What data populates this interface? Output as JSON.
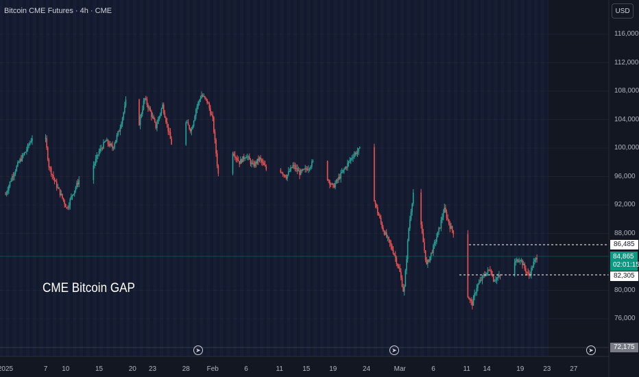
{
  "header": {
    "title": "Bitcoin CME Futures · 4h · CME",
    "currency_label": "USD"
  },
  "annotation": "CME Bitcoin GAP",
  "colors": {
    "background": "#131722",
    "up": "#26a69a",
    "down": "#ef5350",
    "highlight": "#1b2444",
    "price_line": "#089981"
  },
  "y_axis": [
    {
      "label": "116,000",
      "value": 116000
    },
    {
      "label": "112,000",
      "value": 112000
    },
    {
      "label": "108,000",
      "value": 108000
    },
    {
      "label": "104,000",
      "value": 104000
    },
    {
      "label": "100,000",
      "value": 100000
    },
    {
      "label": "96,000",
      "value": 96000
    },
    {
      "label": "92,000",
      "value": 92000
    },
    {
      "label": "88,000",
      "value": 88000
    },
    {
      "label": "80,000",
      "value": 80000
    },
    {
      "label": "76,000",
      "value": 76000
    }
  ],
  "price_tags": {
    "gap_top": {
      "label": "86,485",
      "value": 86485
    },
    "current": {
      "label": "84,865",
      "countdown": "02:01:15",
      "value": 84865
    },
    "gap_bottom": {
      "label": "82,305",
      "value": 82305
    },
    "low": {
      "label": "72,175",
      "value": 72175
    }
  },
  "x_axis": [
    {
      "label": "2025",
      "day": 0
    },
    {
      "label": "7",
      "day": 6
    },
    {
      "label": "10",
      "day": 9
    },
    {
      "label": "15",
      "day": 14
    },
    {
      "label": "20",
      "day": 19
    },
    {
      "label": "23",
      "day": 22
    },
    {
      "label": "28",
      "day": 27
    },
    {
      "label": "Feb",
      "day": 31
    },
    {
      "label": "6",
      "day": 36
    },
    {
      "label": "11",
      "day": 41
    },
    {
      "label": "15",
      "day": 45
    },
    {
      "label": "19",
      "day": 49
    },
    {
      "label": "24",
      "day": 54
    },
    {
      "label": "Mar",
      "day": 59
    },
    {
      "label": "6",
      "day": 64
    },
    {
      "label": "11",
      "day": 69
    },
    {
      "label": "14",
      "day": 72
    },
    {
      "label": "19",
      "day": 77
    },
    {
      "label": "23",
      "day": 81
    },
    {
      "label": "27",
      "day": 85
    }
  ],
  "chart_data": {
    "type": "candlestick",
    "title": "Bitcoin CME Futures · 4h · CME",
    "ylim": [
      72000,
      118500
    ],
    "path_points": [
      [
        0,
        93500
      ],
      [
        1,
        96000
      ],
      [
        2,
        98000
      ],
      [
        3,
        99500
      ],
      [
        4,
        101500
      ],
      [
        5,
        103500
      ],
      [
        5.8,
        102500
      ],
      [
        6.5,
        97500
      ],
      [
        7.5,
        95000
      ],
      [
        8.5,
        93000
      ],
      [
        9.2,
        91500
      ],
      [
        10,
        93500
      ],
      [
        11,
        95500
      ],
      [
        11.8,
        92500
      ],
      [
        12.5,
        96500
      ],
      [
        13.3,
        97800
      ],
      [
        14,
        99500
      ],
      [
        15,
        101000
      ],
      [
        16,
        100000
      ],
      [
        17,
        102500
      ],
      [
        17.8,
        105500
      ],
      [
        18.5,
        109000
      ],
      [
        19,
        106500
      ],
      [
        20,
        103500
      ],
      [
        20.8,
        107000
      ],
      [
        21.5,
        105500
      ],
      [
        22.5,
        103000
      ],
      [
        23.5,
        106000
      ],
      [
        24.6,
        101500
      ],
      [
        25.4,
        98500
      ],
      [
        26.3,
        100500
      ],
      [
        27,
        103500
      ],
      [
        27.8,
        102500
      ],
      [
        28.5,
        105500
      ],
      [
        29.3,
        107500
      ],
      [
        30.2,
        106500
      ],
      [
        31,
        104000
      ],
      [
        31.8,
        96500
      ],
      [
        32.5,
        93000
      ],
      [
        33,
        101000
      ],
      [
        34,
        99500
      ],
      [
        35,
        98000
      ],
      [
        36,
        99000
      ],
      [
        37,
        97500
      ],
      [
        38,
        98500
      ],
      [
        39,
        97000
      ],
      [
        40,
        98500
      ],
      [
        41,
        97000
      ],
      [
        42,
        96000
      ],
      [
        43,
        97500
      ],
      [
        44,
        96500
      ],
      [
        45,
        97000
      ],
      [
        46,
        98000
      ],
      [
        47,
        96800
      ],
      [
        48,
        96000
      ],
      [
        49,
        94500
      ],
      [
        50,
        96000
      ],
      [
        51,
        97500
      ],
      [
        52,
        99000
      ],
      [
        53,
        99800
      ],
      [
        53.8,
        96500
      ],
      [
        54.5,
        95500
      ],
      [
        55.5,
        91500
      ],
      [
        56.5,
        88500
      ],
      [
        57.5,
        86500
      ],
      [
        58.2,
        85000
      ],
      [
        59,
        82500
      ],
      [
        59.6,
        79500
      ],
      [
        60.3,
        88500
      ],
      [
        61.1,
        94500
      ],
      [
        62,
        90000
      ],
      [
        63,
        83500
      ],
      [
        64,
        86000
      ],
      [
        65,
        89000
      ],
      [
        65.6,
        91500
      ],
      [
        66.5,
        89000
      ],
      [
        67.4,
        87500
      ],
      [
        68,
        86000
      ],
      [
        69,
        79500
      ],
      [
        69.8,
        78000
      ],
      [
        70.5,
        80500
      ],
      [
        71.5,
        82000
      ],
      [
        72.5,
        83000
      ],
      [
        73,
        81500
      ],
      [
        74,
        82000
      ],
      [
        75,
        84000
      ],
      [
        76,
        83800
      ],
      [
        77,
        84500
      ],
      [
        77.6,
        83200
      ],
      [
        78.3,
        82000
      ],
      [
        79,
        83800
      ],
      [
        79.6,
        84865
      ]
    ]
  }
}
